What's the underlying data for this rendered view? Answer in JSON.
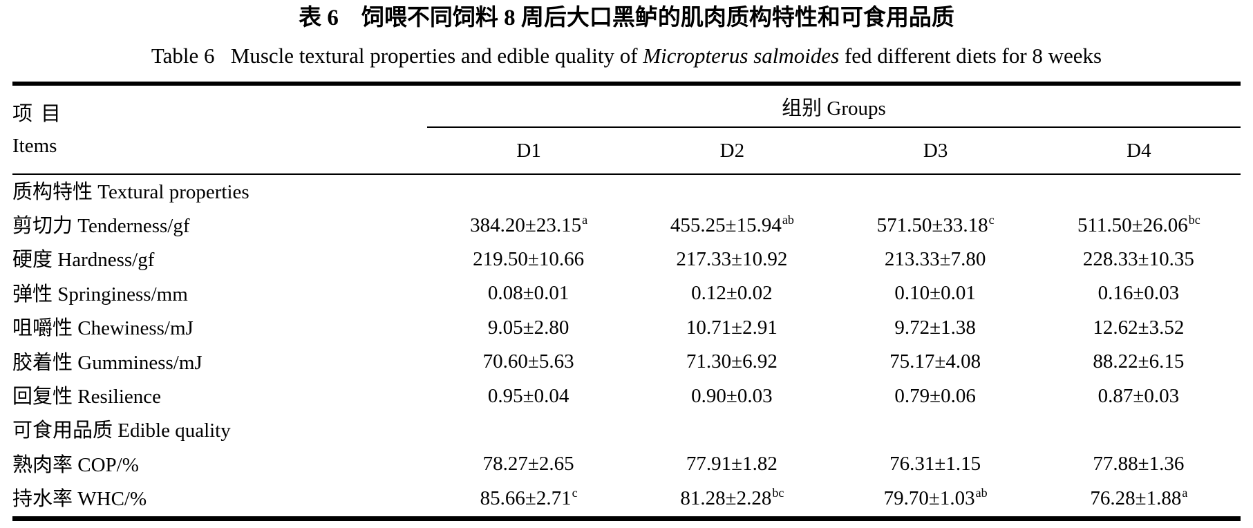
{
  "page": {
    "title_cn": "表 6　饲喂不同饲料 8 周后大口黑鲈的肌肉质构特性和可食用品质",
    "title_en_prefix": "Table 6   Muscle textural properties and edible quality of ",
    "title_en_italic": "Micropterus salmoides",
    "title_en_suffix": " fed different diets for 8 weeks"
  },
  "header": {
    "items_cn": "项目",
    "items_en": "Items",
    "groups_label": "组别 Groups",
    "columns": [
      "D1",
      "D2",
      "D3",
      "D4"
    ]
  },
  "rows": [
    {
      "label": "质构特性 Textural properties",
      "section": true
    },
    {
      "label": "剪切力 Tenderness/gf",
      "values": [
        {
          "v": "384.20±23.15",
          "sup": "a"
        },
        {
          "v": "455.25±15.94",
          "sup": "ab"
        },
        {
          "v": "571.50±33.18",
          "sup": "c"
        },
        {
          "v": "511.50±26.06",
          "sup": "bc"
        }
      ]
    },
    {
      "label": "硬度 Hardness/gf",
      "values": [
        {
          "v": "219.50±10.66",
          "sup": ""
        },
        {
          "v": "217.33±10.92",
          "sup": ""
        },
        {
          "v": "213.33±7.80",
          "sup": ""
        },
        {
          "v": "228.33±10.35",
          "sup": ""
        }
      ]
    },
    {
      "label": "弹性 Springiness/mm",
      "values": [
        {
          "v": "0.08±0.01",
          "sup": ""
        },
        {
          "v": "0.12±0.02",
          "sup": ""
        },
        {
          "v": "0.10±0.01",
          "sup": ""
        },
        {
          "v": "0.16±0.03",
          "sup": ""
        }
      ]
    },
    {
      "label": "咀嚼性 Chewiness/mJ",
      "values": [
        {
          "v": "9.05±2.80",
          "sup": ""
        },
        {
          "v": "10.71±2.91",
          "sup": ""
        },
        {
          "v": "9.72±1.38",
          "sup": ""
        },
        {
          "v": "12.62±3.52",
          "sup": ""
        }
      ]
    },
    {
      "label": "胶着性 Gumminess/mJ",
      "values": [
        {
          "v": "70.60±5.63",
          "sup": ""
        },
        {
          "v": "71.30±6.92",
          "sup": ""
        },
        {
          "v": "75.17±4.08",
          "sup": ""
        },
        {
          "v": "88.22±6.15",
          "sup": ""
        }
      ]
    },
    {
      "label": "回复性 Resilience",
      "values": [
        {
          "v": "0.95±0.04",
          "sup": ""
        },
        {
          "v": "0.90±0.03",
          "sup": ""
        },
        {
          "v": "0.79±0.06",
          "sup": ""
        },
        {
          "v": "0.87±0.03",
          "sup": ""
        }
      ]
    },
    {
      "label": "可食用品质 Edible quality",
      "section": true
    },
    {
      "label": "熟肉率 COP/%",
      "values": [
        {
          "v": "78.27±2.65",
          "sup": ""
        },
        {
          "v": "77.91±1.82",
          "sup": ""
        },
        {
          "v": "76.31±1.15",
          "sup": ""
        },
        {
          "v": "77.88±1.36",
          "sup": ""
        }
      ]
    },
    {
      "label": "持水率 WHC/%",
      "values": [
        {
          "v": "85.66±2.71",
          "sup": "c"
        },
        {
          "v": "81.28±2.28",
          "sup": "bc"
        },
        {
          "v": "79.70±1.03",
          "sup": "ab"
        },
        {
          "v": "76.28±1.88",
          "sup": "a"
        }
      ]
    }
  ],
  "chart_data": {
    "type": "table",
    "title": "表 6　饲喂不同饲料 8 周后大口黑鲈的肌肉质构特性和可食用品质 / Table 6 Muscle textural properties and edible quality of Micropterus salmoides fed different diets for 8 weeks",
    "columns": [
      "项目 Items",
      "D1",
      "D2",
      "D3",
      "D4"
    ],
    "group_header": "组别 Groups",
    "rows": [
      [
        "质构特性 Textural properties",
        "",
        "",
        "",
        ""
      ],
      [
        "剪切力 Tenderness/gf",
        "384.20±23.15a",
        "455.25±15.94ab",
        "571.50±33.18c",
        "511.50±26.06bc"
      ],
      [
        "硬度 Hardness/gf",
        "219.50±10.66",
        "217.33±10.92",
        "213.33±7.80",
        "228.33±10.35"
      ],
      [
        "弹性 Springiness/mm",
        "0.08±0.01",
        "0.12±0.02",
        "0.10±0.01",
        "0.16±0.03"
      ],
      [
        "咀嚼性 Chewiness/mJ",
        "9.05±2.80",
        "10.71±2.91",
        "9.72±1.38",
        "12.62±3.52"
      ],
      [
        "胶着性 Gumminess/mJ",
        "70.60±5.63",
        "71.30±6.92",
        "75.17±4.08",
        "88.22±6.15"
      ],
      [
        "回复性 Resilience",
        "0.95±0.04",
        "0.90±0.03",
        "0.79±0.06",
        "0.87±0.03"
      ],
      [
        "可食用品质 Edible quality",
        "",
        "",
        "",
        ""
      ],
      [
        "熟肉率 COP/%",
        "78.27±2.65",
        "77.91±1.82",
        "76.31±1.15",
        "77.88±1.36"
      ],
      [
        "持水率 WHC/%",
        "85.66±2.71c",
        "81.28±2.28bc",
        "79.70±1.03ab",
        "76.28±1.88a"
      ]
    ]
  }
}
